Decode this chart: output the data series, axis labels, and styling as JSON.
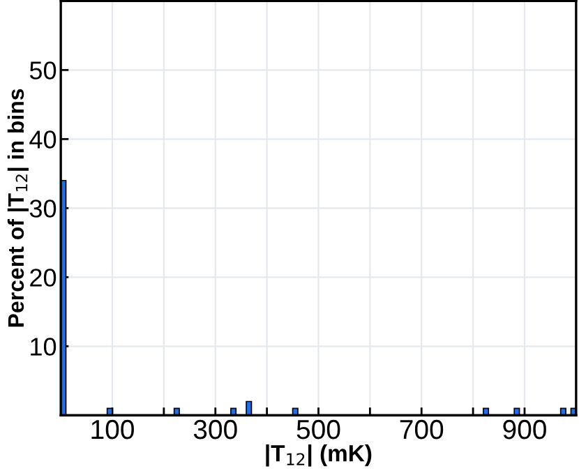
{
  "chart_data": {
    "type": "histogram",
    "xlabel": "|T$_{12}$| (mK)",
    "ylabel": "Percent of |T$_{12}$| in bins",
    "bins": [
      0,
      10,
      20,
      30,
      40,
      50,
      60,
      70,
      80,
      90,
      100,
      110,
      120,
      130,
      140,
      150,
      160,
      170,
      180,
      190,
      200,
      210,
      220,
      230,
      240,
      250,
      260,
      270,
      280,
      290,
      300,
      310,
      320,
      330,
      340,
      350,
      360,
      370,
      380,
      390,
      400,
      410,
      420,
      430,
      440,
      450,
      460,
      470,
      480,
      490,
      500,
      510,
      520,
      530,
      540,
      550,
      560,
      570,
      580,
      590,
      600,
      610,
      620,
      630,
      640,
      650,
      660,
      670,
      680,
      690,
      700,
      710,
      720,
      730,
      740,
      750,
      760,
      770,
      780,
      790,
      800,
      810,
      820,
      830,
      840,
      850,
      860,
      870,
      880,
      890,
      900,
      910,
      920,
      930,
      940,
      950,
      960,
      970,
      980,
      990,
      1000
    ],
    "values": [
      34,
      0,
      0,
      0,
      0,
      0,
      0,
      0,
      0,
      1,
      0,
      0,
      0,
      0,
      0,
      0,
      0,
      0,
      0,
      0,
      0,
      0,
      1,
      0,
      0,
      0,
      0,
      0,
      0,
      0,
      0,
      0,
      0,
      1,
      0,
      0,
      2,
      0,
      0,
      0,
      0,
      0,
      0,
      0,
      0,
      1,
      0,
      0,
      0,
      0,
      0,
      0,
      0,
      0,
      0,
      0,
      0,
      0,
      0,
      0,
      0,
      0,
      0,
      0,
      0,
      0,
      0,
      0,
      0,
      0,
      0,
      0,
      0,
      0,
      0,
      0,
      0,
      0,
      0,
      0,
      0,
      0,
      1,
      0,
      0,
      0,
      0,
      0,
      1,
      0,
      0,
      0,
      0,
      0,
      0,
      0,
      0,
      1,
      0,
      1
    ],
    "color": "#1f6fe8",
    "xlim": [
      0,
      1000
    ],
    "ylim": [
      0,
      60
    ],
    "xticks": [
      100,
      {
        "value": 200,
        "label": null
      },
      300,
      {
        "value": 400,
        "label": null
      },
      500,
      {
        "value": 600,
        "label": null
      },
      700,
      {
        "value": 800,
        "label": null
      },
      900
    ],
    "yticks": [
      10,
      20,
      30,
      40,
      50
    ],
    "grid": true
  }
}
